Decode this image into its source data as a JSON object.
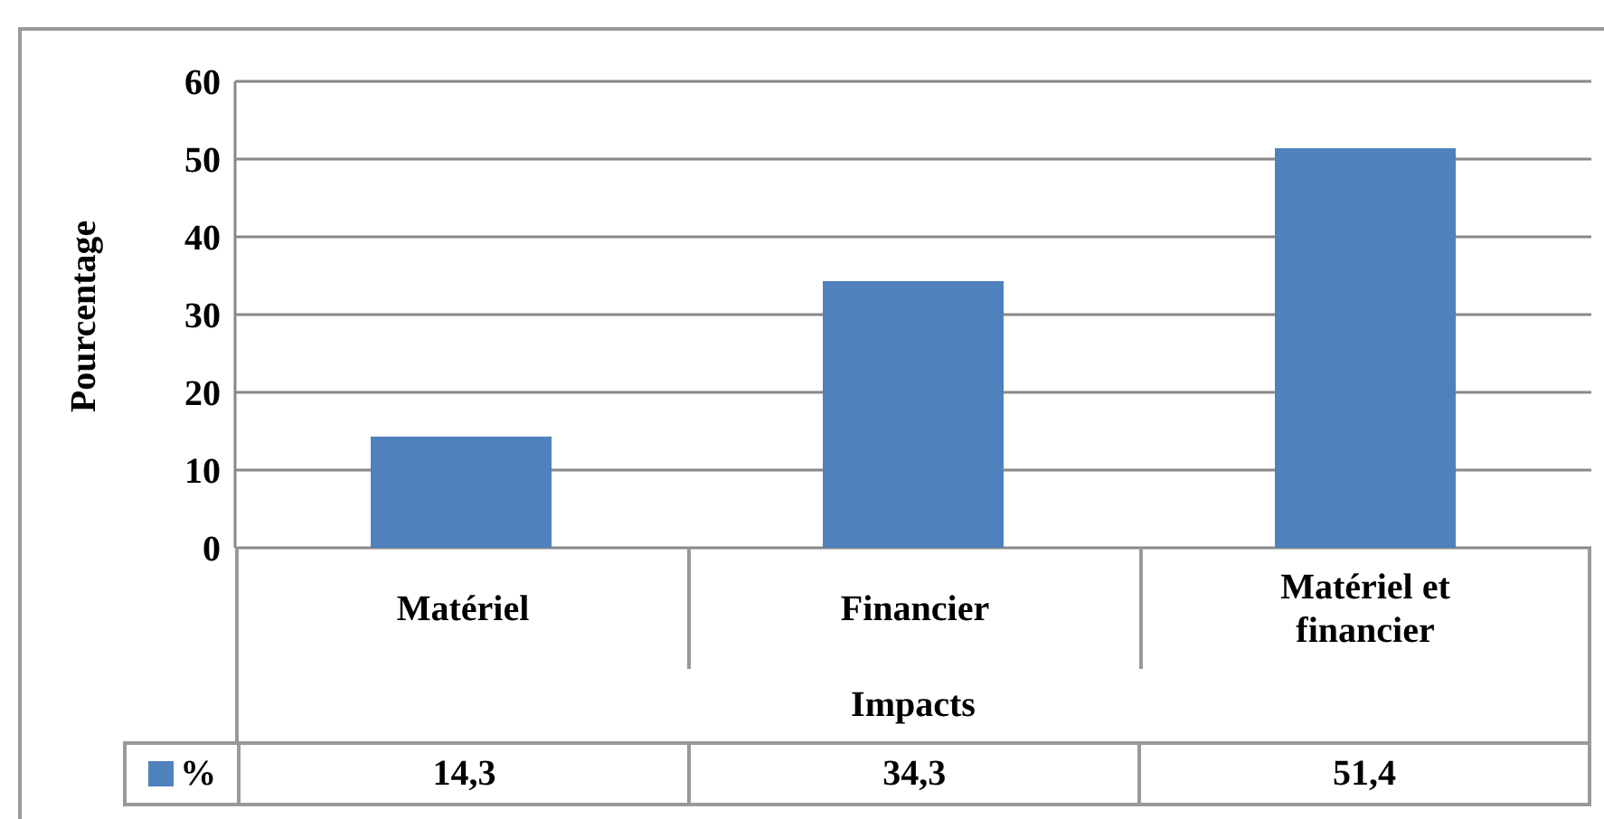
{
  "chart_data": {
    "type": "bar",
    "xlabel": "Impacts",
    "ylabel": "Pourcentage",
    "categories": [
      "Matériel",
      "Financier",
      "Matériel et financier"
    ],
    "series": [
      {
        "name": "%",
        "color": "#4f81bd",
        "values": [
          14.3,
          34.3,
          51.4
        ],
        "value_labels": [
          "14,3",
          "34,3",
          "51,4"
        ]
      }
    ],
    "ylim": [
      0,
      60
    ],
    "yticks": [
      0,
      10,
      20,
      30,
      40,
      50,
      60
    ],
    "grid": "y",
    "legend": "bottom",
    "data_labels": true
  }
}
